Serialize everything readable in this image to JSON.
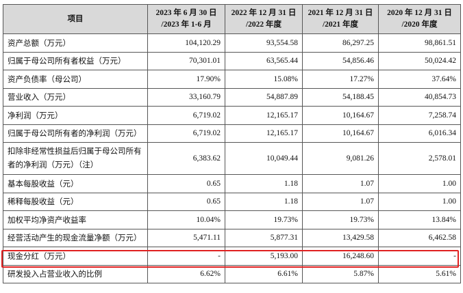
{
  "headers": [
    {
      "line1": "项目",
      "line2": ""
    },
    {
      "line1": "2023 年 6 月 30 日",
      "line2": "/2023 年 1-6 月"
    },
    {
      "line1": "2022 年 12 月 31 日",
      "line2": "/2022 年度"
    },
    {
      "line1": "2021 年 12 月 31 日",
      "line2": "/2021 年度"
    },
    {
      "line1": "2020 年 12 月 31 日",
      "line2": "/2020 年度"
    }
  ],
  "rows": [
    {
      "label": "资产总额（万元）",
      "values": [
        "104,120.29",
        "93,554.58",
        "86,297.25",
        "98,861.51"
      ]
    },
    {
      "label": "归属于母公司所有者权益（万元）",
      "values": [
        "70,301.01",
        "63,565.44",
        "54,856.46",
        "50,024.42"
      ]
    },
    {
      "label": "资产负债率（母公司）",
      "values": [
        "17.90%",
        "15.08%",
        "17.27%",
        "37.64%"
      ]
    },
    {
      "label": "营业收入（万元）",
      "values": [
        "33,160.79",
        "54,887.89",
        "54,188.45",
        "40,854.73"
      ]
    },
    {
      "label": "净利润（万元）",
      "values": [
        "6,719.02",
        "12,165.17",
        "10,164.67",
        "7,258.74"
      ]
    },
    {
      "label": "归属于母公司所有者的净利润（万元）",
      "values": [
        "6,719.02",
        "12,165.17",
        "10,164.67",
        "6,016.34"
      ]
    },
    {
      "label": "扣除非经常性损益后归属于母公司所有者的净利润（万元）（注）",
      "values": [
        "6,383.62",
        "10,049.44",
        "9,081.26",
        "2,578.01"
      ]
    },
    {
      "label": "基本每股收益（元）",
      "values": [
        "0.65",
        "1.18",
        "1.07",
        "1.00"
      ]
    },
    {
      "label": "稀释每股收益（元）",
      "values": [
        "0.65",
        "1.18",
        "1.07",
        "1.00"
      ]
    },
    {
      "label": "加权平均净资产收益率",
      "values": [
        "10.04%",
        "19.73%",
        "19.73%",
        "13.84%"
      ]
    },
    {
      "label": "经营活动产生的现金流量净额（万元）",
      "values": [
        "5,471.11",
        "5,877.31",
        "13,429.58",
        "6,462.58"
      ]
    },
    {
      "label": "现金分红（万元）",
      "values": [
        "-",
        "5,193.00",
        "16,248.60",
        "-"
      ]
    },
    {
      "label": "研发投入占营业收入的比例",
      "values": [
        "6.62%",
        "6.61%",
        "5.87%",
        "5.61%"
      ]
    }
  ],
  "colors": {
    "header_bg": "#d9d9d9",
    "highlight_border": "#e02020"
  }
}
